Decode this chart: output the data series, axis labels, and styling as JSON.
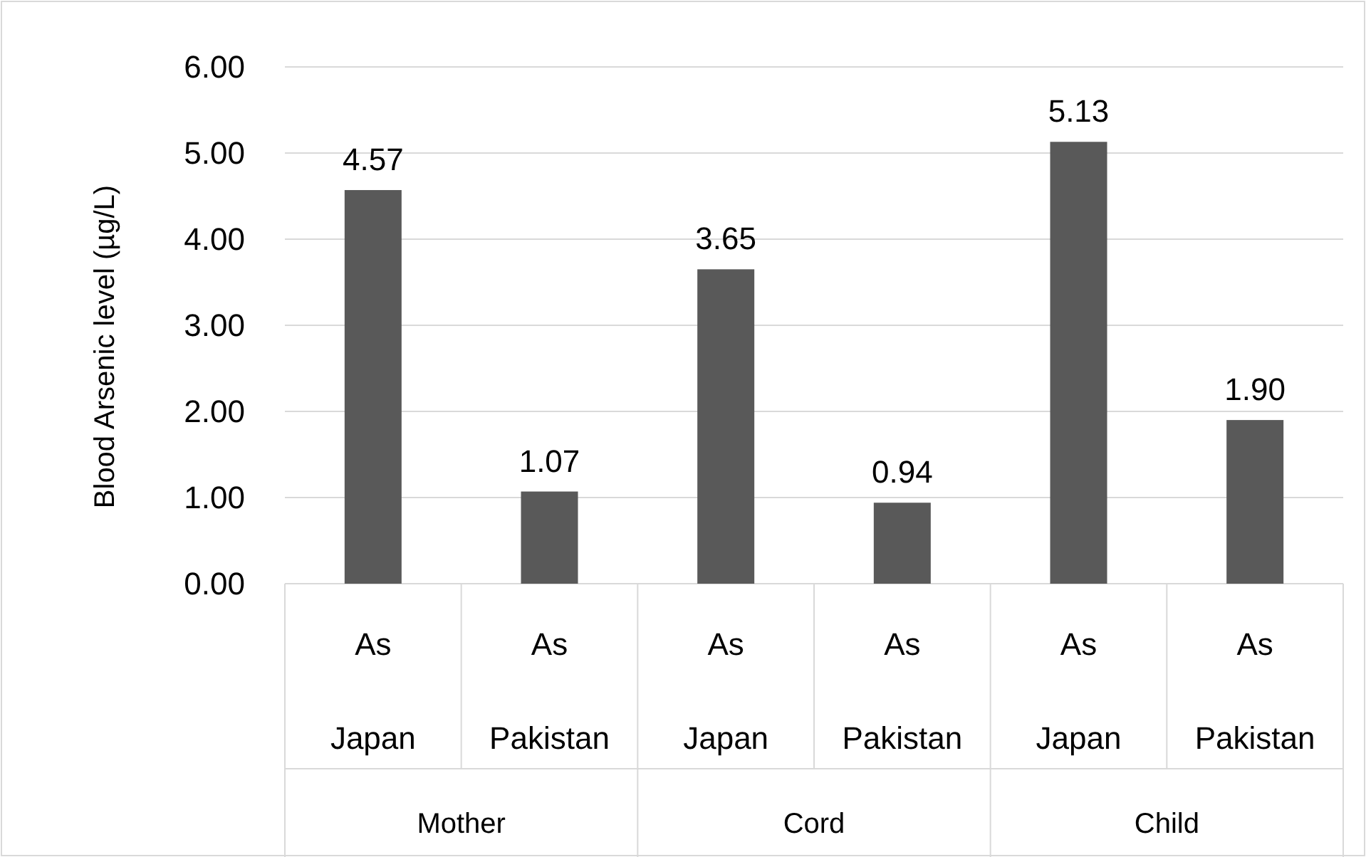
{
  "chart_data": {
    "type": "bar",
    "ylabel": "Blood Arsenic level (µg/L)",
    "categories": [
      "As Japan",
      "As Pakistan",
      "As Japan",
      "As Pakistan",
      "As Japan",
      "As Pakistan"
    ],
    "annotations": [
      "Mother",
      "Cord",
      "Child"
    ],
    "values": [
      4.57,
      1.07,
      3.65,
      0.94,
      5.13,
      1.9
    ],
    "value_labels": [
      "4.57",
      "1.07",
      "3.65",
      "0.94",
      "5.13",
      "1.90"
    ],
    "color": "#595959",
    "ylim": [
      0,
      6
    ],
    "yticks": [
      {
        "value": 0,
        "label": "0.00"
      },
      {
        "value": 1,
        "label": "1.00"
      },
      {
        "value": 2,
        "label": "2.00"
      },
      {
        "value": 3,
        "label": "3.00"
      },
      {
        "value": 4,
        "label": "4.00"
      },
      {
        "value": 5,
        "label": "5.00"
      },
      {
        "value": 6,
        "label": "6.00"
      }
    ],
    "grid": "y"
  }
}
